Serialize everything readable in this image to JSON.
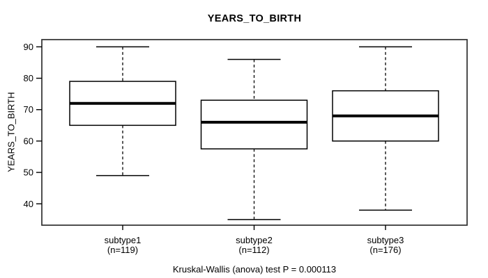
{
  "chart_data": {
    "type": "boxplot",
    "title": "YEARS_TO_BIRTH",
    "ylabel": "YEARS_TO_BIRTH",
    "xlabel": "",
    "caption": "Kruskal-Wallis (anova) test P = 0.000113",
    "grid": false,
    "legend": "none",
    "y_ticks": [
      40,
      50,
      60,
      70,
      80,
      90
    ],
    "ylim": [
      33.2,
      92.3
    ],
    "categories": [
      "subtype1",
      "subtype2",
      "subtype3"
    ],
    "groups": [
      {
        "label": "subtype1",
        "sublabel": "(n=119)",
        "n": 119,
        "whisker_low": 49,
        "q1": 65,
        "median": 72,
        "q3": 79,
        "whisker_high": 90
      },
      {
        "label": "subtype2",
        "sublabel": "(n=112)",
        "n": 112,
        "whisker_low": 35,
        "q1": 57.5,
        "median": 66,
        "q3": 73,
        "whisker_high": 86
      },
      {
        "label": "subtype3",
        "sublabel": "(n=176)",
        "n": 176,
        "whisker_low": 38,
        "q1": 60,
        "median": 68,
        "q3": 76,
        "whisker_high": 90
      }
    ],
    "colors": {
      "box_stroke": "#000000",
      "median": "#000000",
      "border": "#303030",
      "background": "#ffffff"
    }
  }
}
